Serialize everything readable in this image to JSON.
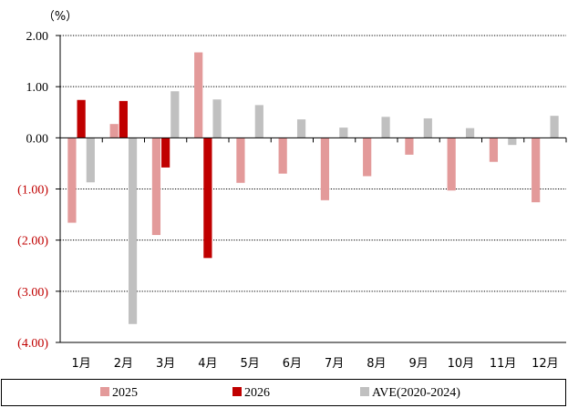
{
  "chart_data": {
    "type": "bar",
    "unit_label": "（%）",
    "categories": [
      "1月",
      "2月",
      "3月",
      "4月",
      "5月",
      "6月",
      "7月",
      "8月",
      "9月",
      "10月",
      "11月",
      "12月"
    ],
    "ylim": [
      -4,
      2
    ],
    "yticks": [
      2,
      1,
      0,
      -1,
      -2,
      -3,
      -4
    ],
    "ytick_labels": [
      "2.00",
      "1.00",
      "0.00",
      "(1.00)",
      "(2.00)",
      "(3.00)",
      "(4.00)"
    ],
    "negative_label_color": "#c00000",
    "positive_label_color": "#000000",
    "grid": true,
    "legend_position": "bottom",
    "series": [
      {
        "name": "2025",
        "color": "#e39a9a",
        "values": [
          -1.66,
          0.27,
          -1.9,
          1.67,
          -0.88,
          -0.7,
          -1.22,
          -0.75,
          -0.33,
          -1.03,
          -0.47,
          -1.26
        ]
      },
      {
        "name": "2026",
        "color": "#c00000",
        "values": [
          0.74,
          0.72,
          -0.58,
          -2.35,
          null,
          null,
          null,
          null,
          null,
          null,
          null,
          null
        ]
      },
      {
        "name": "AVE(2020-2024)",
        "color": "#c0c0c0",
        "values": [
          -0.87,
          -3.64,
          0.91,
          0.75,
          0.64,
          0.36,
          0.2,
          0.41,
          0.38,
          0.19,
          -0.14,
          0.43
        ]
      }
    ]
  }
}
